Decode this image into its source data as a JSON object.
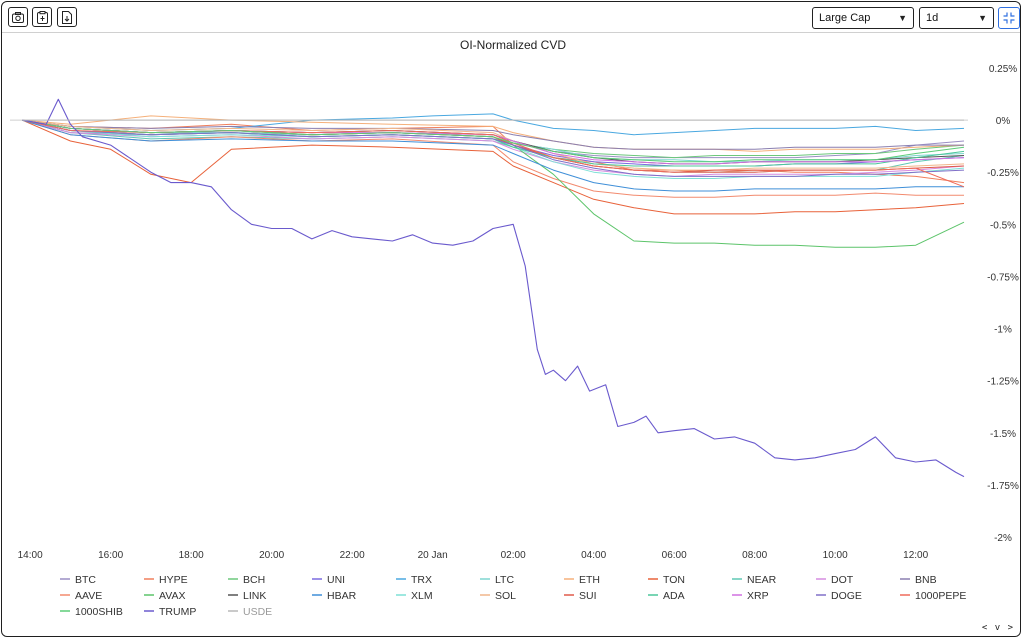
{
  "toolbar": {
    "screenshot_icon": "camera-icon",
    "copy_icon": "clipboard-icon",
    "export_icon": "file-export-icon",
    "market_cap_select": "Large Cap",
    "timeframe_select": "1d",
    "collapse_icon": "collapse-icon",
    "nav_arrows": "< v >"
  },
  "chart_data": {
    "type": "line",
    "title": "OI-Normalized CVD",
    "xlabel": "",
    "ylabel": "",
    "x_ticks": [
      "14:00",
      "16:00",
      "18:00",
      "20:00",
      "22:00",
      "20 Jan",
      "02:00",
      "04:00",
      "06:00",
      "08:00",
      "10:00",
      "12:00"
    ],
    "y_ticks": [
      "0.25%",
      "0%",
      "-0.25%",
      "-0.5%",
      "-0.75%",
      "-1%",
      "-1.25%",
      "-1.5%",
      "-1.75%",
      "-2%"
    ],
    "x_range_hours": [
      13.5,
      37.3
    ],
    "ylim": [
      -2,
      0.25
    ],
    "y_unit": "%",
    "grid": false,
    "legend_position": "bottom",
    "series": [
      {
        "name": "BTC",
        "color": "#9a8fc4",
        "x": [
          13.8,
          15,
          17,
          19,
          21,
          23,
          25.5,
          26,
          27,
          28,
          29,
          30,
          31,
          32,
          33,
          34,
          35,
          36,
          37.2
        ],
        "values": [
          0,
          -0.06,
          -0.07,
          -0.05,
          -0.06,
          -0.05,
          -0.07,
          -0.1,
          -0.15,
          -0.17,
          -0.18,
          -0.18,
          -0.18,
          -0.18,
          -0.18,
          -0.17,
          -0.16,
          -0.12,
          -0.1
        ]
      },
      {
        "name": "HYPE",
        "color": "#f07f5c",
        "x": [
          13.8,
          15,
          17,
          19,
          21,
          23,
          25.5,
          26,
          27,
          28,
          29,
          30,
          31,
          32,
          33,
          34,
          35,
          36,
          37.2
        ],
        "values": [
          0,
          -0.03,
          -0.04,
          -0.02,
          -0.05,
          -0.04,
          -0.03,
          -0.12,
          -0.18,
          -0.2,
          -0.24,
          -0.24,
          -0.25,
          -0.24,
          -0.25,
          -0.25,
          -0.26,
          -0.27,
          -0.3
        ]
      },
      {
        "name": "BCH",
        "color": "#6cc87c",
        "x": [
          13.8,
          15,
          17,
          19,
          21,
          23,
          25.5,
          26,
          27,
          28,
          29,
          30,
          31,
          32,
          33,
          34,
          35,
          36,
          37.2
        ],
        "values": [
          0,
          -0.05,
          -0.07,
          -0.06,
          -0.08,
          -0.07,
          -0.09,
          -0.11,
          -0.14,
          -0.16,
          -0.17,
          -0.18,
          -0.17,
          -0.17,
          -0.17,
          -0.16,
          -0.16,
          -0.14,
          -0.12
        ]
      },
      {
        "name": "UNI",
        "color": "#7a6ae0",
        "x": [
          13.8,
          15,
          17,
          19,
          21,
          23,
          25.5,
          26,
          27,
          28,
          29,
          30,
          31,
          32,
          33,
          34,
          35,
          36,
          37.2
        ],
        "values": [
          0,
          -0.05,
          -0.07,
          -0.06,
          -0.07,
          -0.06,
          -0.08,
          -0.12,
          -0.17,
          -0.2,
          -0.21,
          -0.22,
          -0.22,
          -0.22,
          -0.21,
          -0.21,
          -0.2,
          -0.19,
          -0.18
        ]
      },
      {
        "name": "TRX",
        "color": "#4aa8e0",
        "x": [
          13.8,
          15,
          17,
          19,
          21,
          23,
          24,
          25.5,
          26,
          27,
          28,
          29,
          30,
          31,
          32,
          33,
          34,
          35,
          36,
          37.2
        ],
        "values": [
          0,
          -0.03,
          -0.05,
          -0.04,
          0,
          0.01,
          0.02,
          0.03,
          0,
          -0.04,
          -0.05,
          -0.07,
          -0.06,
          -0.05,
          -0.04,
          -0.04,
          -0.04,
          -0.03,
          -0.05,
          -0.04
        ]
      },
      {
        "name": "LTC",
        "color": "#7fd6d0",
        "x": [
          13.8,
          15,
          17,
          19,
          21,
          23,
          25.5,
          26,
          27,
          28,
          29,
          30,
          31,
          32,
          33,
          34,
          35,
          36,
          37.2
        ],
        "values": [
          0,
          -0.04,
          -0.06,
          -0.06,
          -0.07,
          -0.06,
          -0.08,
          -0.11,
          -0.14,
          -0.18,
          -0.19,
          -0.19,
          -0.2,
          -0.2,
          -0.19,
          -0.19,
          -0.19,
          -0.17,
          -0.16
        ]
      },
      {
        "name": "ETH",
        "color": "#f5b07a",
        "x": [
          13.8,
          15,
          17,
          19,
          21,
          23,
          25.5,
          26,
          27,
          28,
          29,
          30,
          31,
          32,
          33,
          34,
          35,
          36,
          37.2
        ],
        "values": [
          0,
          -0.02,
          0.02,
          0,
          -0.01,
          -0.02,
          -0.03,
          -0.06,
          -0.1,
          -0.13,
          -0.14,
          -0.14,
          -0.14,
          -0.15,
          -0.14,
          -0.14,
          -0.14,
          -0.13,
          -0.12
        ]
      },
      {
        "name": "TON",
        "color": "#e8623a",
        "x": [
          13.8,
          15,
          16,
          17,
          18,
          19,
          21,
          23,
          25.5,
          26,
          27,
          28,
          29,
          30,
          31,
          32,
          33,
          34,
          35,
          36,
          37.2
        ],
        "values": [
          0,
          -0.1,
          -0.14,
          -0.26,
          -0.3,
          -0.14,
          -0.12,
          -0.13,
          -0.15,
          -0.22,
          -0.3,
          -0.38,
          -0.42,
          -0.45,
          -0.45,
          -0.45,
          -0.44,
          -0.44,
          -0.43,
          -0.42,
          -0.4
        ]
      },
      {
        "name": "NEAR",
        "color": "#5fc8b4",
        "x": [
          13.8,
          15,
          17,
          19,
          21,
          23,
          25.5,
          26,
          27,
          28,
          29,
          30,
          31,
          32,
          33,
          34,
          35,
          36,
          37.2
        ],
        "values": [
          0,
          -0.06,
          -0.09,
          -0.08,
          -0.09,
          -0.08,
          -0.1,
          -0.13,
          -0.18,
          -0.22,
          -0.24,
          -0.25,
          -0.25,
          -0.25,
          -0.24,
          -0.24,
          -0.24,
          -0.2,
          -0.17
        ]
      },
      {
        "name": "DOT",
        "color": "#d68ce0",
        "x": [
          13.8,
          15,
          17,
          19,
          21,
          23,
          25.5,
          26,
          27,
          28,
          29,
          30,
          31,
          32,
          33,
          34,
          35,
          36,
          37.2
        ],
        "values": [
          0,
          -0.06,
          -0.08,
          -0.07,
          -0.09,
          -0.08,
          -0.1,
          -0.14,
          -0.2,
          -0.24,
          -0.26,
          -0.27,
          -0.26,
          -0.26,
          -0.26,
          -0.26,
          -0.25,
          -0.24,
          -0.22
        ]
      },
      {
        "name": "BNB",
        "color": "#8a7fb0",
        "x": [
          13.8,
          15,
          17,
          19,
          21,
          23,
          25.5,
          26,
          27,
          28,
          29,
          30,
          31,
          32,
          33,
          34,
          35,
          36,
          37.2
        ],
        "values": [
          0,
          -0.03,
          -0.04,
          -0.03,
          -0.04,
          -0.04,
          -0.05,
          -0.07,
          -0.1,
          -0.13,
          -0.14,
          -0.14,
          -0.14,
          -0.14,
          -0.13,
          -0.13,
          -0.13,
          -0.12,
          -0.12
        ]
      },
      {
        "name": "AAVE",
        "color": "#f28a6e",
        "x": [
          13.8,
          15,
          17,
          19,
          21,
          23,
          25.5,
          26,
          27,
          28,
          29,
          30,
          31,
          32,
          33,
          34,
          35,
          36,
          37.2
        ],
        "values": [
          0,
          -0.07,
          -0.1,
          -0.08,
          -0.1,
          -0.09,
          -0.12,
          -0.2,
          -0.28,
          -0.34,
          -0.36,
          -0.37,
          -0.37,
          -0.36,
          -0.36,
          -0.36,
          -0.35,
          -0.36,
          -0.36
        ]
      },
      {
        "name": "AVAX",
        "color": "#5cc46a",
        "x": [
          13.8,
          15,
          17,
          19,
          21,
          23,
          25.5,
          26,
          27,
          28,
          29,
          30,
          31,
          32,
          33,
          34,
          35,
          36,
          37.2
        ],
        "values": [
          0,
          -0.04,
          -0.06,
          -0.05,
          -0.07,
          -0.06,
          -0.08,
          -0.12,
          -0.26,
          -0.45,
          -0.58,
          -0.59,
          -0.59,
          -0.6,
          -0.6,
          -0.61,
          -0.61,
          -0.6,
          -0.49
        ]
      },
      {
        "name": "LINK",
        "color": "#555555",
        "x": [
          13.8,
          15,
          17,
          19,
          21,
          23,
          25.5,
          26,
          27,
          28,
          29,
          30,
          31,
          32,
          33,
          34,
          35,
          36,
          37.2
        ],
        "values": [
          0,
          -0.04,
          -0.06,
          -0.05,
          -0.06,
          -0.05,
          -0.07,
          -0.1,
          -0.15,
          -0.18,
          -0.2,
          -0.21,
          -0.21,
          -0.2,
          -0.2,
          -0.2,
          -0.19,
          -0.18,
          -0.17
        ]
      },
      {
        "name": "HBAR",
        "color": "#3f8fd8",
        "x": [
          13.8,
          15,
          17,
          19,
          21,
          23,
          25.5,
          26,
          27,
          28,
          29,
          30,
          31,
          32,
          33,
          34,
          35,
          36,
          37.2
        ],
        "values": [
          0,
          -0.07,
          -0.1,
          -0.09,
          -0.1,
          -0.1,
          -0.12,
          -0.16,
          -0.24,
          -0.3,
          -0.33,
          -0.34,
          -0.34,
          -0.33,
          -0.33,
          -0.33,
          -0.33,
          -0.32,
          -0.32
        ]
      },
      {
        "name": "XLM",
        "color": "#7ee0d6",
        "x": [
          13.8,
          15,
          17,
          19,
          21,
          23,
          25.5,
          26,
          27,
          28,
          29,
          30,
          31,
          32,
          33,
          34,
          35,
          36,
          37.2
        ],
        "values": [
          0,
          -0.05,
          -0.08,
          -0.07,
          -0.08,
          -0.07,
          -0.09,
          -0.13,
          -0.2,
          -0.25,
          -0.27,
          -0.28,
          -0.28,
          -0.27,
          -0.27,
          -0.27,
          -0.27,
          -0.25,
          -0.23
        ]
      },
      {
        "name": "SOL",
        "color": "#f0b68a",
        "x": [
          13.8,
          15,
          17,
          19,
          21,
          23,
          25.5,
          26,
          27,
          28,
          29,
          30,
          31,
          32,
          33,
          34,
          35,
          36,
          37.2
        ],
        "values": [
          0,
          -0.03,
          -0.05,
          -0.04,
          -0.05,
          -0.04,
          -0.06,
          -0.1,
          -0.16,
          -0.21,
          -0.23,
          -0.24,
          -0.24,
          -0.23,
          -0.23,
          -0.23,
          -0.23,
          -0.22,
          -0.21
        ]
      },
      {
        "name": "SUI",
        "color": "#e05a4a",
        "x": [
          13.8,
          15,
          17,
          19,
          21,
          23,
          25.5,
          26,
          27,
          28,
          29,
          30,
          31,
          32,
          33,
          34,
          35,
          36,
          37.2
        ],
        "values": [
          0,
          -0.04,
          -0.06,
          -0.05,
          -0.07,
          -0.06,
          -0.08,
          -0.12,
          -0.18,
          -0.22,
          -0.24,
          -0.25,
          -0.24,
          -0.24,
          -0.24,
          -0.24,
          -0.24,
          -0.23,
          -0.22
        ]
      },
      {
        "name": "ADA",
        "color": "#4cc79a",
        "x": [
          13.8,
          15,
          17,
          19,
          21,
          23,
          25.5,
          26,
          27,
          28,
          29,
          30,
          31,
          32,
          33,
          34,
          35,
          36,
          37.2
        ],
        "values": [
          0,
          -0.05,
          -0.07,
          -0.06,
          -0.08,
          -0.07,
          -0.09,
          -0.13,
          -0.18,
          -0.21,
          -0.22,
          -0.22,
          -0.22,
          -0.22,
          -0.21,
          -0.21,
          -0.21,
          -0.18,
          -0.15
        ]
      },
      {
        "name": "XRP",
        "color": "#d070e0",
        "x": [
          13.8,
          15,
          17,
          19,
          21,
          23,
          25.5,
          26,
          27,
          28,
          29,
          30,
          31,
          32,
          33,
          34,
          35,
          36,
          37.2
        ],
        "values": [
          0,
          -0.04,
          -0.06,
          -0.05,
          -0.06,
          -0.06,
          -0.07,
          -0.1,
          -0.16,
          -0.19,
          -0.2,
          -0.21,
          -0.21,
          -0.2,
          -0.2,
          -0.2,
          -0.2,
          -0.19,
          -0.18
        ]
      },
      {
        "name": "DOGE",
        "color": "#8070c8",
        "x": [
          13.8,
          15,
          17,
          19,
          21,
          23,
          25.5,
          26,
          27,
          28,
          29,
          30,
          31,
          32,
          33,
          34,
          35,
          36,
          37.2
        ],
        "values": [
          0,
          -0.05,
          -0.07,
          -0.06,
          -0.08,
          -0.07,
          -0.09,
          -0.12,
          -0.19,
          -0.23,
          -0.26,
          -0.27,
          -0.27,
          -0.27,
          -0.27,
          -0.26,
          -0.26,
          -0.25,
          -0.24
        ]
      },
      {
        "name": "1000PEPE",
        "color": "#ef6a5a",
        "x": [
          13.8,
          15,
          17,
          19,
          21,
          23,
          25.5,
          26,
          27,
          28,
          29,
          30,
          31,
          32,
          33,
          34,
          35,
          36,
          37.2
        ],
        "values": [
          0,
          -0.05,
          -0.06,
          -0.05,
          -0.06,
          -0.05,
          -0.07,
          -0.11,
          -0.18,
          -0.22,
          -0.24,
          -0.25,
          -0.25,
          -0.25,
          -0.24,
          -0.24,
          -0.24,
          -0.23,
          -0.32
        ]
      },
      {
        "name": "1000SHIB",
        "color": "#5ccc78",
        "x": [
          13.8,
          15,
          17,
          19,
          21,
          23,
          25.5,
          26,
          27,
          28,
          29,
          30,
          31,
          32,
          33,
          34,
          35,
          36,
          37.2
        ],
        "values": [
          0,
          -0.04,
          -0.06,
          -0.05,
          -0.07,
          -0.06,
          -0.08,
          -0.11,
          -0.15,
          -0.18,
          -0.19,
          -0.2,
          -0.2,
          -0.19,
          -0.19,
          -0.19,
          -0.19,
          -0.16,
          -0.13
        ]
      },
      {
        "name": "TRUMP",
        "color": "#6a5acd",
        "x": [
          13.8,
          14.4,
          14.7,
          15,
          15.3,
          16,
          17,
          17.5,
          18,
          18.5,
          19,
          19.5,
          20,
          20.5,
          21,
          21.5,
          22,
          22.5,
          23,
          23.5,
          24,
          24.5,
          25,
          25.5,
          26,
          26.3,
          26.6,
          26.8,
          27,
          27.3,
          27.6,
          27.9,
          28.3,
          28.6,
          29,
          29.3,
          29.6,
          30,
          30.5,
          31,
          31.5,
          32,
          32.5,
          33,
          33.5,
          34,
          34.5,
          35,
          35.5,
          36,
          36.5,
          37,
          37.2
        ],
        "values": [
          0,
          -0.02,
          0.1,
          -0.02,
          -0.08,
          -0.12,
          -0.25,
          -0.3,
          -0.3,
          -0.32,
          -0.43,
          -0.5,
          -0.52,
          -0.52,
          -0.57,
          -0.53,
          -0.56,
          -0.57,
          -0.58,
          -0.55,
          -0.59,
          -0.6,
          -0.58,
          -0.52,
          -0.5,
          -0.7,
          -1.1,
          -1.22,
          -1.2,
          -1.25,
          -1.18,
          -1.3,
          -1.27,
          -1.47,
          -1.45,
          -1.42,
          -1.5,
          -1.49,
          -1.48,
          -1.53,
          -1.52,
          -1.55,
          -1.62,
          -1.63,
          -1.62,
          -1.6,
          -1.58,
          -1.52,
          -1.62,
          -1.64,
          -1.63,
          -1.69,
          -1.71
        ]
      },
      {
        "name": "USDE",
        "color": "#b8b8b8",
        "x": [
          13.8,
          37.2
        ],
        "values": [
          0,
          0
        ]
      }
    ]
  }
}
